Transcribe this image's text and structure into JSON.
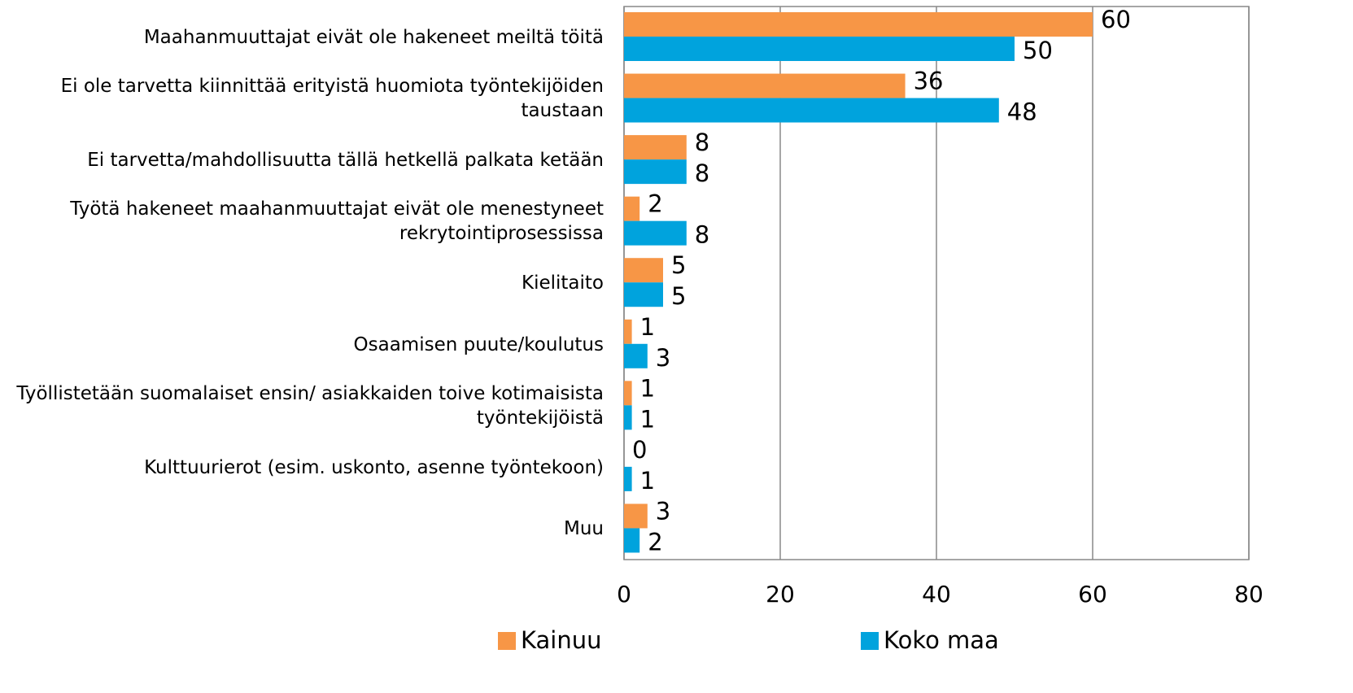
{
  "chart_data": {
    "type": "barh",
    "categories": [
      "Maahanmuuttajat eivät ole hakeneet meiltä töitä",
      "Ei ole tarvetta kiinnittää erityistä huomiota työntekijöiden taustaan",
      "Ei tarvetta/mahdollisuutta tällä hetkellä palkata ketään",
      "Työtä hakeneet maahanmuuttajat eivät ole menestyneet rekrytointiprosessissa",
      "Kielitaito",
      "Osaamisen puute/koulutus",
      "Työllistetään suomalaiset ensin/ asiakkaiden toive kotimaisista työntekijöistä",
      "Kulttuurierot (esim. uskonto, asenne työntekoon)",
      "Muu"
    ],
    "series": [
      {
        "name": "Kainuu",
        "color": "#f79646",
        "values": [
          60,
          36,
          8,
          2,
          5,
          1,
          1,
          0,
          3
        ]
      },
      {
        "name": "Koko maa",
        "color": "#00a3dd",
        "values": [
          50,
          48,
          8,
          8,
          5,
          3,
          1,
          1,
          2
        ]
      }
    ],
    "xlim": [
      0,
      80
    ],
    "xticks": [
      0,
      20,
      40,
      60,
      80
    ],
    "grid": true,
    "legend": "bottom"
  }
}
